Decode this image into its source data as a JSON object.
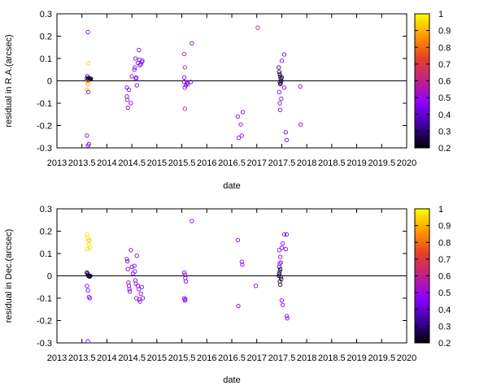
{
  "chart_data": [
    {
      "type": "scatter",
      "title": "",
      "xlabel": "date",
      "ylabel": "residual in R.A.(arcsec)",
      "xlim": [
        2013,
        2020
      ],
      "ylim": [
        -0.3,
        0.3
      ],
      "x_ticks": [
        "2013",
        "2013.5",
        "2014",
        "2014.5",
        "2015",
        "2015.5",
        "2016",
        "2016.5",
        "2017",
        "2017.5",
        "2018",
        "2018.5",
        "2019",
        "2019.5",
        "2020"
      ],
      "y_ticks": [
        "0.3",
        "0.2",
        "0.1",
        "0",
        "-0.1",
        "-0.2",
        "-0.3"
      ],
      "zero_line": true,
      "grid": false,
      "colorbar": {
        "range": [
          0.2,
          1
        ],
        "ticks": [
          "1",
          "0.9",
          "0.8",
          "0.7",
          "0.6",
          "0.5",
          "0.4",
          "0.3",
          "0.2"
        ],
        "palette": [
          "#000000",
          "#3c00a0",
          "#8c00ff",
          "#c0208a",
          "#e63f2a",
          "#ff9900",
          "#ffff00"
        ]
      },
      "points": [
        [
          2013.62,
          0.218,
          0.45
        ],
        [
          2013.63,
          0.079,
          0.95
        ],
        [
          2013.6,
          0.01,
          0.25
        ],
        [
          2013.61,
          0.02,
          0.3
        ],
        [
          2013.62,
          0.005,
          0.25
        ],
        [
          2013.63,
          0.012,
          0.25
        ],
        [
          2013.64,
          0.008,
          0.25
        ],
        [
          2013.65,
          0.01,
          0.28
        ],
        [
          2013.66,
          0.006,
          0.25
        ],
        [
          2013.67,
          0.01,
          0.25
        ],
        [
          2013.68,
          0.009,
          0.25
        ],
        [
          2013.61,
          -0.005,
          0.9
        ],
        [
          2013.62,
          -0.015,
          0.9
        ],
        [
          2013.6,
          -0.04,
          0.92
        ],
        [
          2013.63,
          -0.05,
          0.5
        ],
        [
          2013.6,
          -0.245,
          0.45
        ],
        [
          2013.62,
          -0.29,
          0.45
        ],
        [
          2013.64,
          -0.283,
          0.45
        ],
        [
          2014.4,
          -0.03,
          0.45
        ],
        [
          2014.4,
          -0.07,
          0.45
        ],
        [
          2014.41,
          -0.085,
          0.45
        ],
        [
          2014.42,
          -0.12,
          0.45
        ],
        [
          2014.44,
          -0.04,
          0.45
        ],
        [
          2014.48,
          -0.1,
          0.45
        ],
        [
          2014.5,
          0.02,
          0.45
        ],
        [
          2014.55,
          0.05,
          0.45
        ],
        [
          2014.56,
          0.06,
          0.45
        ],
        [
          2014.57,
          0.1,
          0.45
        ],
        [
          2014.58,
          0.01,
          0.45
        ],
        [
          2014.59,
          0.015,
          0.45
        ],
        [
          2014.6,
          -0.02,
          0.45
        ],
        [
          2014.62,
          0.08,
          0.45
        ],
        [
          2014.64,
          0.138,
          0.45
        ],
        [
          2014.65,
          0.095,
          0.45
        ],
        [
          2014.66,
          0.07,
          0.45
        ],
        [
          2014.68,
          0.075,
          0.45
        ],
        [
          2014.7,
          0.085,
          0.45
        ],
        [
          2014.71,
          0.09,
          0.45
        ],
        [
          2015.55,
          0.12,
          0.6
        ],
        [
          2015.56,
          0.06,
          0.6
        ],
        [
          2015.56,
          -0.125,
          0.6
        ],
        [
          2015.55,
          0.015,
          0.45
        ],
        [
          2015.55,
          -0.005,
          0.45
        ],
        [
          2015.56,
          -0.03,
          0.45
        ],
        [
          2015.58,
          -0.02,
          0.45
        ],
        [
          2015.6,
          -0.01,
          0.45
        ],
        [
          2015.62,
          -0.015,
          0.45
        ],
        [
          2015.68,
          -0.005,
          0.45
        ],
        [
          2015.7,
          0.168,
          0.45
        ],
        [
          2016.62,
          -0.16,
          0.45
        ],
        [
          2016.64,
          -0.255,
          0.45
        ],
        [
          2016.68,
          -0.195,
          0.45
        ],
        [
          2016.7,
          -0.245,
          0.45
        ],
        [
          2016.72,
          -0.14,
          0.45
        ],
        [
          2017.02,
          0.238,
          0.6
        ],
        [
          2017.44,
          0.06,
          0.3
        ],
        [
          2017.45,
          0.04,
          0.3
        ],
        [
          2017.46,
          0.03,
          0.25
        ],
        [
          2017.47,
          0.02,
          0.25
        ],
        [
          2017.48,
          0.01,
          0.25
        ],
        [
          2017.49,
          0.0,
          0.25
        ],
        [
          2017.46,
          -0.005,
          0.25
        ],
        [
          2017.47,
          -0.015,
          0.25
        ],
        [
          2017.5,
          0.015,
          0.25
        ],
        [
          2017.48,
          -0.01,
          0.3
        ],
        [
          2017.45,
          -0.05,
          0.45
        ],
        [
          2017.46,
          -0.1,
          0.45
        ],
        [
          2017.47,
          -0.13,
          0.45
        ],
        [
          2017.49,
          -0.08,
          0.45
        ],
        [
          2017.5,
          0.09,
          0.45
        ],
        [
          2017.55,
          0.118,
          0.45
        ],
        [
          2017.55,
          -0.03,
          0.45
        ],
        [
          2017.58,
          -0.23,
          0.45
        ],
        [
          2017.6,
          -0.265,
          0.45
        ],
        [
          2017.87,
          -0.025,
          0.45
        ],
        [
          2017.88,
          -0.195,
          0.45
        ]
      ]
    },
    {
      "type": "scatter",
      "title": "",
      "xlabel": "date",
      "ylabel": "residual in Dec.(arcsec)",
      "xlim": [
        2013,
        2020
      ],
      "ylim": [
        -0.3,
        0.3
      ],
      "x_ticks": [
        "2013",
        "2013.5",
        "2014",
        "2014.5",
        "2015",
        "2015.5",
        "2016",
        "2016.5",
        "2017",
        "2017.5",
        "2018",
        "2018.5",
        "2019",
        "2019.5",
        "2020"
      ],
      "y_ticks": [
        "0.3",
        "0.2",
        "0.1",
        "0",
        "-0.1",
        "-0.2",
        "-0.3"
      ],
      "zero_line": true,
      "grid": false,
      "colorbar": {
        "range": [
          0.2,
          1
        ],
        "ticks": [
          "1",
          "0.9",
          "0.8",
          "0.7",
          "0.6",
          "0.5",
          "0.4",
          "0.3",
          "0.2"
        ],
        "palette": [
          "#000000",
          "#3c00a0",
          "#8c00ff",
          "#c0208a",
          "#e63f2a",
          "#ff9900",
          "#ffff00"
        ]
      },
      "points": [
        [
          2013.6,
          0.185,
          0.95
        ],
        [
          2013.62,
          0.17,
          0.95
        ],
        [
          2013.63,
          0.155,
          0.95
        ],
        [
          2013.64,
          0.14,
          0.95
        ],
        [
          2013.65,
          0.16,
          0.95
        ],
        [
          2013.66,
          0.125,
          0.95
        ],
        [
          2013.61,
          0.12,
          0.95
        ],
        [
          2013.6,
          0.015,
          0.25
        ],
        [
          2013.61,
          0.01,
          0.25
        ],
        [
          2013.62,
          0.005,
          0.25
        ],
        [
          2013.63,
          0.0,
          0.25
        ],
        [
          2013.64,
          -0.002,
          0.25
        ],
        [
          2013.65,
          0.0,
          0.25
        ],
        [
          2013.66,
          -0.003,
          0.25
        ],
        [
          2013.67,
          0.0,
          0.25
        ],
        [
          2013.6,
          -0.045,
          0.45
        ],
        [
          2013.62,
          -0.065,
          0.45
        ],
        [
          2013.64,
          -0.095,
          0.45
        ],
        [
          2013.66,
          -0.1,
          0.45
        ],
        [
          2013.62,
          -0.293,
          0.45
        ],
        [
          2014.4,
          0.075,
          0.45
        ],
        [
          2014.41,
          0.065,
          0.45
        ],
        [
          2014.42,
          0.03,
          0.45
        ],
        [
          2014.43,
          -0.03,
          0.45
        ],
        [
          2014.44,
          -0.045,
          0.45
        ],
        [
          2014.45,
          -0.06,
          0.45
        ],
        [
          2014.46,
          -0.07,
          0.45
        ],
        [
          2014.48,
          0.115,
          0.45
        ],
        [
          2014.5,
          0.04,
          0.45
        ],
        [
          2014.52,
          0.01,
          0.45
        ],
        [
          2014.55,
          0.045,
          0.45
        ],
        [
          2014.56,
          0.02,
          0.45
        ],
        [
          2014.57,
          -0.02,
          0.45
        ],
        [
          2014.58,
          -0.035,
          0.45
        ],
        [
          2014.59,
          -0.1,
          0.45
        ],
        [
          2014.6,
          0.09,
          0.45
        ],
        [
          2014.62,
          -0.045,
          0.45
        ],
        [
          2014.64,
          -0.06,
          0.45
        ],
        [
          2014.65,
          -0.105,
          0.45
        ],
        [
          2014.66,
          -0.115,
          0.45
        ],
        [
          2014.68,
          -0.08,
          0.45
        ],
        [
          2014.7,
          -0.05,
          0.45
        ],
        [
          2014.72,
          -0.1,
          0.45
        ],
        [
          2015.55,
          0.015,
          0.45
        ],
        [
          2015.56,
          0.005,
          0.45
        ],
        [
          2015.57,
          -0.01,
          0.45
        ],
        [
          2015.58,
          -0.025,
          0.45
        ],
        [
          2015.55,
          -0.1,
          0.45
        ],
        [
          2015.56,
          -0.11,
          0.45
        ],
        [
          2015.57,
          -0.105,
          0.45
        ],
        [
          2015.7,
          0.245,
          0.45
        ],
        [
          2016.62,
          0.16,
          0.45
        ],
        [
          2016.63,
          -0.135,
          0.45
        ],
        [
          2016.7,
          0.063,
          0.45
        ],
        [
          2016.71,
          0.05,
          0.45
        ],
        [
          2016.98,
          -0.045,
          0.45
        ],
        [
          2017.44,
          0.0,
          0.25
        ],
        [
          2017.45,
          0.01,
          0.25
        ],
        [
          2017.46,
          0.02,
          0.25
        ],
        [
          2017.47,
          0.03,
          0.25
        ],
        [
          2017.48,
          -0.005,
          0.25
        ],
        [
          2017.49,
          -0.015,
          0.25
        ],
        [
          2017.46,
          -0.025,
          0.25
        ],
        [
          2017.47,
          -0.04,
          0.25
        ],
        [
          2017.45,
          0.04,
          0.3
        ],
        [
          2017.46,
          0.055,
          0.45
        ],
        [
          2017.47,
          0.085,
          0.45
        ],
        [
          2017.48,
          0.06,
          0.45
        ],
        [
          2017.45,
          0.115,
          0.45
        ],
        [
          2017.5,
          0.125,
          0.45
        ],
        [
          2017.52,
          0.145,
          0.45
        ],
        [
          2017.55,
          0.185,
          0.45
        ],
        [
          2017.6,
          0.185,
          0.45
        ],
        [
          2017.5,
          -0.11,
          0.45
        ],
        [
          2017.52,
          -0.13,
          0.45
        ],
        [
          2017.6,
          -0.18,
          0.45
        ],
        [
          2017.61,
          -0.19,
          0.45
        ],
        [
          2017.58,
          0.12,
          0.45
        ]
      ]
    }
  ]
}
